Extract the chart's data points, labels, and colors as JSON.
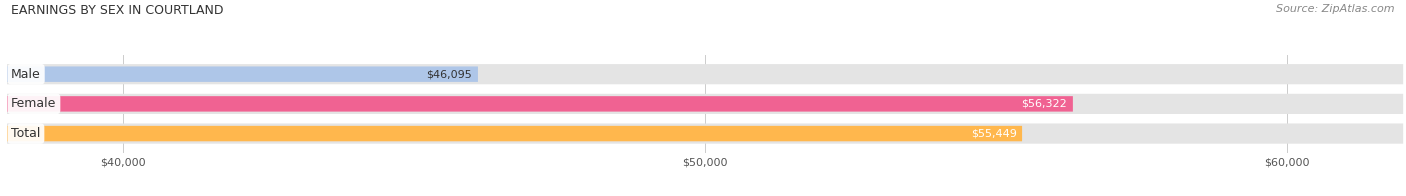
{
  "title": "EARNINGS BY SEX IN COURTLAND",
  "source": "Source: ZipAtlas.com",
  "categories": [
    "Male",
    "Female",
    "Total"
  ],
  "values": [
    46095,
    56322,
    55449
  ],
  "bar_colors": [
    "#aec6e8",
    "#f06292",
    "#ffb74d"
  ],
  "label_colors": [
    "#333333",
    "#ffffff",
    "#ffffff"
  ],
  "value_labels": [
    "$46,095",
    "$56,322",
    "$55,449"
  ],
  "xmin": 38000,
  "xmax": 62000,
  "xticks": [
    40000,
    50000,
    60000
  ],
  "xtick_labels": [
    "$40,000",
    "$50,000",
    "$60,000"
  ],
  "figsize": [
    14.06,
    1.96
  ],
  "dpi": 100,
  "background_color": "#ffffff",
  "bar_track_bg": "#e4e4e4",
  "title_fontsize": 9,
  "source_fontsize": 8,
  "bar_label_fontsize": 9,
  "value_label_fontsize": 8,
  "tick_fontsize": 8
}
